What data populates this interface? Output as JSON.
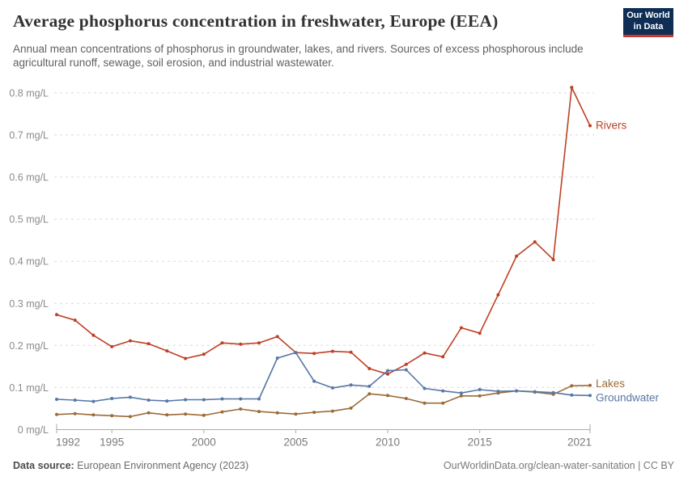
{
  "header": {
    "logo": {
      "line1": "Our World",
      "line2": "in Data"
    }
  },
  "chart_data": {
    "type": "line",
    "title": "Average phosphorus concentration in freshwater, Europe (EEA)",
    "subtitle": "Annual mean concentrations of phosphorus in groundwater, lakes, and rivers. Sources of excess phosphorous include agricultural runoff, sewage, soil erosion, and industrial wastewater.",
    "unit": "mg/L",
    "grid": "dashed-horizontal",
    "legend_position": "end-of-line",
    "ylim": [
      0,
      0.8
    ],
    "y_ticks": [
      0,
      0.1,
      0.2,
      0.3,
      0.4,
      0.5,
      0.6,
      0.7,
      0.8
    ],
    "y_tick_labels": [
      "0 mg/L",
      "0.1 mg/L",
      "0.2 mg/L",
      "0.3 mg/L",
      "0.4 mg/L",
      "0.5 mg/L",
      "0.6 mg/L",
      "0.7 mg/L",
      "0.8 mg/L"
    ],
    "x_ticks": [
      1992,
      1995,
      2000,
      2005,
      2010,
      2015,
      2021
    ],
    "x": [
      1992,
      1993,
      1994,
      1995,
      1996,
      1997,
      1998,
      1999,
      2000,
      2001,
      2002,
      2003,
      2004,
      2005,
      2006,
      2007,
      2008,
      2009,
      2010,
      2011,
      2012,
      2013,
      2014,
      2015,
      2016,
      2017,
      2018,
      2019,
      2020,
      2021
    ],
    "series": [
      {
        "name": "Rivers",
        "color": "#BD4024",
        "label_dy": 0,
        "values": [
          0.273,
          0.26,
          0.224,
          0.197,
          0.211,
          0.204,
          0.187,
          0.169,
          0.179,
          0.206,
          0.203,
          0.206,
          0.221,
          0.183,
          0.181,
          0.186,
          0.184,
          0.145,
          0.132,
          0.155,
          0.182,
          0.173,
          0.242,
          0.229,
          0.32,
          0.412,
          0.446,
          0.404,
          0.813,
          0.722
        ]
      },
      {
        "name": "Lakes",
        "color": "#9C6B38",
        "label_dy": -2,
        "values": [
          0.036,
          0.038,
          0.035,
          0.033,
          0.031,
          0.04,
          0.035,
          0.037,
          0.034,
          0.042,
          0.049,
          0.043,
          0.04,
          0.037,
          0.041,
          0.044,
          0.051,
          0.085,
          0.081,
          0.074,
          0.063,
          0.063,
          0.08,
          0.08,
          0.087,
          0.092,
          0.089,
          0.084,
          0.104,
          0.105
        ]
      },
      {
        "name": "Groundwater",
        "color": "#5777A6",
        "label_dy": 3,
        "values": [
          0.072,
          0.07,
          0.067,
          0.074,
          0.077,
          0.07,
          0.068,
          0.071,
          0.071,
          0.073,
          0.073,
          0.073,
          0.17,
          0.183,
          0.115,
          0.099,
          0.106,
          0.103,
          0.14,
          0.142,
          0.098,
          0.092,
          0.087,
          0.095,
          0.091,
          0.092,
          0.09,
          0.088,
          0.082,
          0.081
        ]
      }
    ]
  },
  "footer": {
    "source_label": "Data source:",
    "source_value": "European Environment Agency (2023)",
    "attribution": "OurWorldinData.org/clean-water-sanitation | CC BY"
  },
  "colors": {
    "rivers": "#BD4024",
    "lakes": "#9C6B38",
    "groundwater": "#5777A6",
    "logo_bg": "#0E2E55",
    "logo_stripe": "#D0352B"
  }
}
